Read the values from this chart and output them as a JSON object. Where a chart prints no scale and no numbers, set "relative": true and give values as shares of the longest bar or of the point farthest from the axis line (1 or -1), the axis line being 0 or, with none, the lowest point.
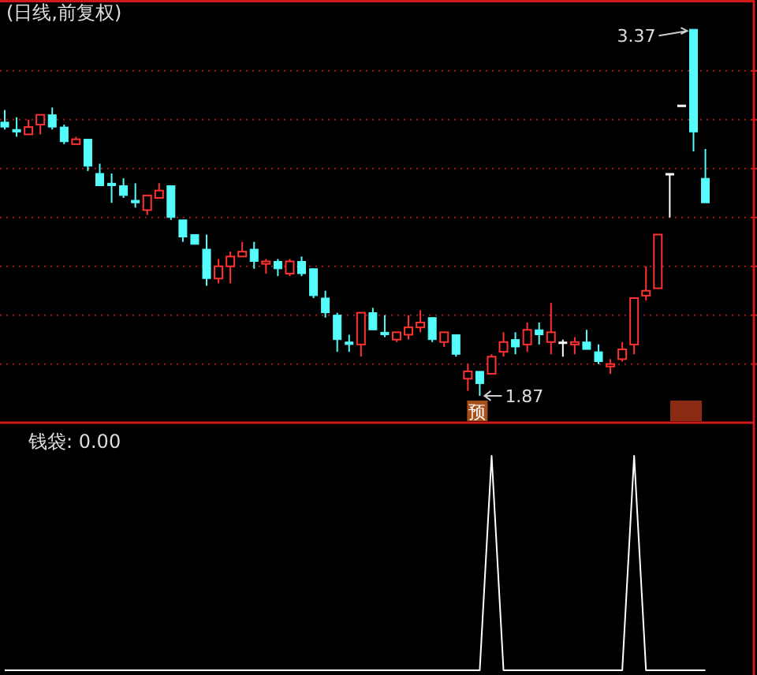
{
  "chart_data": [
    {
      "type": "candlestick",
      "title": "(日线,前复权)",
      "grid": "y",
      "categories": [
        null,
        null,
        null,
        null,
        null,
        null,
        null,
        null,
        null,
        null,
        null,
        null,
        null,
        null,
        null,
        null,
        null,
        null,
        null,
        null,
        null,
        null,
        null,
        null,
        null,
        null,
        null,
        null,
        null,
        null,
        null,
        null,
        null,
        null,
        null,
        null,
        null,
        null,
        null,
        null,
        null,
        null,
        null,
        null,
        null,
        null,
        null,
        null,
        null,
        null,
        null,
        null,
        null,
        null,
        null,
        null,
        null,
        null,
        null,
        null
      ],
      "ohlc": [
        [
          2.99,
          3.04,
          2.96,
          2.97
        ],
        [
          2.96,
          3.01,
          2.93,
          2.95
        ],
        [
          2.94,
          3.0,
          2.94,
          2.97
        ],
        [
          2.98,
          3.02,
          2.94,
          3.02
        ],
        [
          3.02,
          3.05,
          2.96,
          2.97
        ],
        [
          2.97,
          2.98,
          2.9,
          2.91
        ],
        [
          2.9,
          2.93,
          2.9,
          2.92
        ],
        [
          2.92,
          2.92,
          2.79,
          2.81
        ],
        [
          2.78,
          2.82,
          2.73,
          2.73
        ],
        [
          2.74,
          2.78,
          2.66,
          2.73
        ],
        [
          2.73,
          2.76,
          2.68,
          2.69
        ],
        [
          2.67,
          2.74,
          2.64,
          2.66
        ],
        [
          2.63,
          2.69,
          2.61,
          2.69
        ],
        [
          2.68,
          2.74,
          2.68,
          2.71
        ],
        [
          2.73,
          2.73,
          2.59,
          2.6
        ],
        [
          2.59,
          2.59,
          2.5,
          2.52
        ],
        [
          2.53,
          2.53,
          2.49,
          2.49
        ],
        [
          2.47,
          2.53,
          2.32,
          2.35
        ],
        [
          2.35,
          2.43,
          2.33,
          2.4
        ],
        [
          2.4,
          2.46,
          2.33,
          2.44
        ],
        [
          2.44,
          2.5,
          2.44,
          2.46
        ],
        [
          2.47,
          2.5,
          2.39,
          2.42
        ],
        [
          2.41,
          2.43,
          2.37,
          2.42
        ],
        [
          2.42,
          2.43,
          2.36,
          2.39
        ],
        [
          2.37,
          2.43,
          2.36,
          2.42
        ],
        [
          2.42,
          2.44,
          2.36,
          2.37
        ],
        [
          2.39,
          2.39,
          2.27,
          2.28
        ],
        [
          2.27,
          2.3,
          2.19,
          2.21
        ],
        [
          2.2,
          2.21,
          2.05,
          2.1
        ],
        [
          2.09,
          2.12,
          2.05,
          2.08
        ],
        [
          2.08,
          2.21,
          2.03,
          2.21
        ],
        [
          2.21,
          2.23,
          2.14,
          2.14
        ],
        [
          2.13,
          2.2,
          2.11,
          2.12
        ],
        [
          2.1,
          2.13,
          2.09,
          2.13
        ],
        [
          2.12,
          2.2,
          2.1,
          2.15
        ],
        [
          2.15,
          2.22,
          2.13,
          2.17
        ],
        [
          2.19,
          2.19,
          2.09,
          2.1
        ],
        [
          2.09,
          2.13,
          2.07,
          2.13
        ],
        [
          2.12,
          2.12,
          2.03,
          2.04
        ],
        [
          1.94,
          2.0,
          1.89,
          1.97
        ],
        [
          1.97,
          1.97,
          1.87,
          1.92
        ],
        [
          1.96,
          2.04,
          1.96,
          2.03
        ],
        [
          2.05,
          2.13,
          2.03,
          2.09
        ],
        [
          2.1,
          2.13,
          2.04,
          2.07
        ],
        [
          2.08,
          2.17,
          2.05,
          2.14
        ],
        [
          2.14,
          2.17,
          2.08,
          2.12
        ],
        [
          2.09,
          2.25,
          2.04,
          2.13
        ],
        [
          2.09,
          2.1,
          2.03,
          2.09
        ],
        [
          2.08,
          2.11,
          2.04,
          2.09
        ],
        [
          2.09,
          2.14,
          2.06,
          2.06
        ],
        [
          2.05,
          2.08,
          2.0,
          2.01
        ],
        [
          1.99,
          2.02,
          1.96,
          2.0
        ],
        [
          2.02,
          2.09,
          2.01,
          2.06
        ],
        [
          2.08,
          2.27,
          2.04,
          2.27
        ],
        [
          2.28,
          2.4,
          2.26,
          2.3
        ],
        [
          2.31,
          2.53,
          2.31,
          2.53
        ],
        [
          2.78,
          2.78,
          2.6,
          2.78
        ],
        [
          3.06,
          3.06,
          3.06,
          3.06
        ],
        [
          3.37,
          3.37,
          2.87,
          2.95
        ],
        [
          2.76,
          2.88,
          2.66,
          2.66
        ]
      ],
      "colors": [
        "#54fcfc",
        "#54fcfc",
        "#ff3232",
        "#ff3232",
        "#54fcfc",
        "#54fcfc",
        "#ff3232",
        "#54fcfc",
        "#54fcfc",
        "#54fcfc",
        "#54fcfc",
        "#54fcfc",
        "#ff3232",
        "#ff3232",
        "#54fcfc",
        "#54fcfc",
        "#54fcfc",
        "#54fcfc",
        "#ff3232",
        "#ff3232",
        "#ff3232",
        "#54fcfc",
        "#ff3232",
        "#54fcfc",
        "#ff3232",
        "#54fcfc",
        "#54fcfc",
        "#54fcfc",
        "#54fcfc",
        "#54fcfc",
        "#ff3232",
        "#54fcfc",
        "#54fcfc",
        "#ff3232",
        "#ff3232",
        "#ff3232",
        "#54fcfc",
        "#ff3232",
        "#54fcfc",
        "#ff3232",
        "#54fcfc",
        "#ff3232",
        "#ff3232",
        "#54fcfc",
        "#ff3232",
        "#54fcfc",
        "#ff3232",
        "#ffffff",
        "#ff3232",
        "#54fcfc",
        "#54fcfc",
        "#ff3232",
        "#ff3232",
        "#ff3232",
        "#ff3232",
        "#ff3232",
        "#ffffff",
        "#ffffff",
        "#54fcfc",
        "#54fcfc"
      ],
      "ylim": [
        1.76,
        3.49
      ],
      "yticks": [
        {
          "value": 3.2,
          "label": null
        },
        {
          "value": 3.0,
          "label": null
        },
        {
          "value": 2.8,
          "label": null
        },
        {
          "value": 2.6,
          "label": null
        },
        {
          "value": 2.4,
          "label": null
        },
        {
          "value": 2.2,
          "label": null
        },
        {
          "value": 2.0,
          "label": null
        }
      ],
      "annotations": [
        "3.37",
        "1.87",
        "预"
      ]
    },
    {
      "type": "line",
      "title": "钱袋: 0.00",
      "relative": true,
      "categories": [
        null,
        null,
        null,
        null,
        null,
        null,
        null,
        null,
        null,
        null,
        null,
        null,
        null,
        null,
        null,
        null,
        null,
        null,
        null,
        null,
        null,
        null,
        null,
        null,
        null,
        null,
        null,
        null,
        null,
        null,
        null,
        null,
        null,
        null,
        null,
        null,
        null,
        null,
        null,
        null,
        null,
        null,
        null,
        null,
        null,
        null,
        null,
        null,
        null,
        null,
        null,
        null,
        null,
        null,
        null,
        null,
        null,
        null,
        null,
        null
      ],
      "series": [
        {
          "color": "#ffffff",
          "values": [
            0,
            0,
            0,
            0,
            0,
            0,
            0,
            0,
            0,
            0,
            0,
            0,
            0,
            0,
            0,
            0,
            0,
            0,
            0,
            0,
            0,
            0,
            0,
            0,
            0,
            0,
            0,
            0,
            0,
            0,
            0,
            0,
            0,
            0,
            0,
            0,
            0,
            0,
            0,
            0,
            0,
            1,
            0,
            0,
            0,
            0,
            0,
            0,
            0,
            0,
            0,
            0,
            0,
            1,
            0,
            0,
            0,
            0,
            0,
            0
          ]
        }
      ]
    }
  ]
}
